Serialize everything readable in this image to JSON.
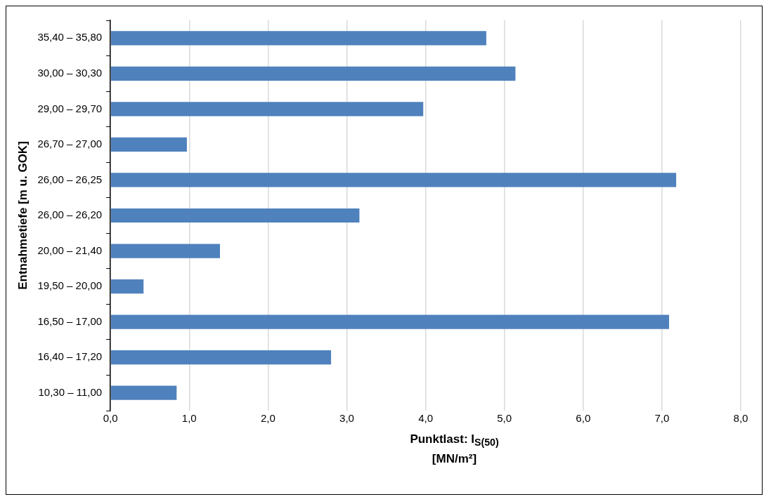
{
  "chart_data": {
    "type": "bar",
    "orientation": "horizontal",
    "ylabel": "Entnahmetiefe [m u. GOK]",
    "xlabel": "Punktlast: I$_{S(50)}$\n[MN/m²]",
    "categories": [
      "35,40 – 35,80",
      "30,00 – 30,30",
      "29,00 – 29,70",
      "26,70 – 27,00",
      "26,00 – 26,25",
      "26,00 – 26,20",
      "20,00 – 21,40",
      "19,50 – 20,00",
      "16,50 – 17,00",
      "16,40 – 17,20",
      "10,30 – 11,00"
    ],
    "values": [
      4.77,
      5.14,
      3.97,
      0.97,
      7.18,
      3.16,
      1.39,
      0.42,
      7.09,
      2.8,
      0.84
    ],
    "color": "#4f81bd",
    "xlim": [
      0,
      8
    ],
    "xticks": [
      {
        "value": 0,
        "label": "0,0"
      },
      {
        "value": 1,
        "label": "1,0"
      },
      {
        "value": 2,
        "label": "2,0"
      },
      {
        "value": 3,
        "label": "3,0"
      },
      {
        "value": 4,
        "label": "4,0"
      },
      {
        "value": 5,
        "label": "5,0"
      },
      {
        "value": 6,
        "label": "6,0"
      },
      {
        "value": 7,
        "label": "7,0"
      },
      {
        "value": 8,
        "label": "8,0"
      }
    ],
    "grid": "x",
    "legend": false
  }
}
